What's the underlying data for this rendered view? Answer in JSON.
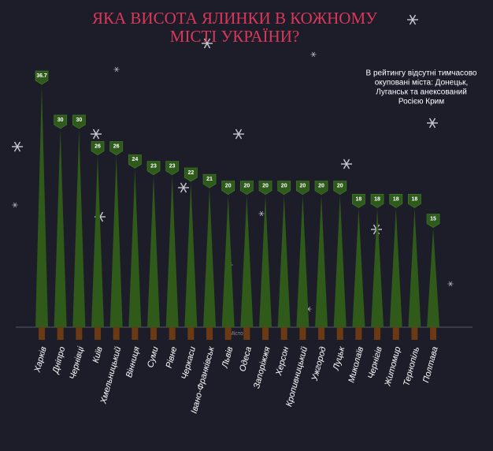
{
  "chart_data": {
    "type": "tree-bar",
    "title": [
      "ЯКА ВИСОТА ЯЛИНКИ В КОЖНОМУ",
      "МІСТІ УКРАЇНИ?"
    ],
    "annotation": [
      "В рейтингу відсутні тимчасово",
      "окуповані міста: Донецьк,",
      "Луганськ та анексований",
      "Росією Крим"
    ],
    "x_label": "Місто",
    "categories": [
      "Харків",
      "Дніпро",
      "Чернівці",
      "Київ",
      "Хмельницький",
      "Вінниця",
      "Суми",
      "Рівне",
      "Черкаси",
      "Івано-Франківськ",
      "Львів",
      "Одеса",
      "Запоріжжя",
      "Херсон",
      "Кропивницький",
      "Ужгород",
      "Луцьк",
      "Миколаїв",
      "Чернігів",
      "Житомир",
      "Тернопіль",
      "Полтава"
    ],
    "values": [
      36.7,
      30,
      30,
      26,
      26,
      24,
      23,
      23,
      22,
      21,
      20,
      20,
      20,
      20,
      20,
      20,
      20,
      18,
      18,
      18,
      18,
      15
    ],
    "color": "#2f5a19",
    "trunk_color": "#6b3a12"
  }
}
